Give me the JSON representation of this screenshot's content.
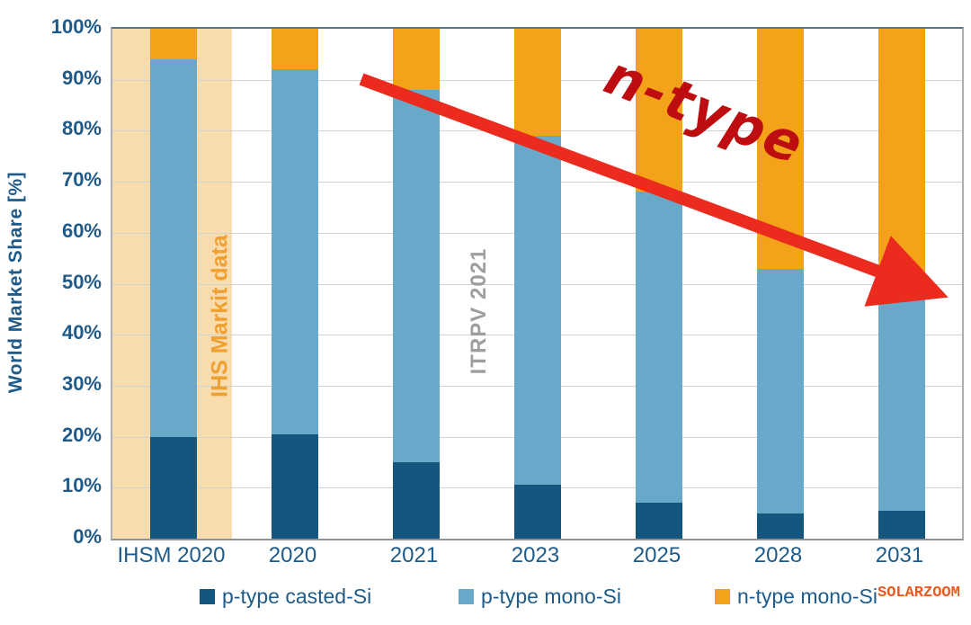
{
  "chart_data": {
    "type": "bar",
    "stacked": true,
    "orientation": "vertical",
    "title": "",
    "ylabel": "World Market Share [%]",
    "ylim": [
      0,
      100
    ],
    "ytick_step": 10,
    "ytick_suffix": "%",
    "grid": true,
    "legend_position": "bottom",
    "categories": [
      "IHSM 2020",
      "2020",
      "2021",
      "2023",
      "2025",
      "2028",
      "2031"
    ],
    "series": [
      {
        "name": "p-type casted-Si",
        "color": "#15567e",
        "values": [
          20,
          20.5,
          15,
          10.5,
          7,
          5,
          5.5
        ]
      },
      {
        "name": "p-type mono-Si",
        "color": "#68a8c8",
        "values": [
          74,
          71.5,
          73,
          68.5,
          61,
          48,
          41.5
        ]
      },
      {
        "name": "n-type mono-Si",
        "color": "#f5a21b",
        "values": [
          6,
          8,
          12,
          21,
          32,
          47,
          53
        ]
      }
    ],
    "annotations": {
      "highlight_band": {
        "text": "IHS Markit data",
        "category": "IHSM 2020",
        "band_color": "#f8dcad",
        "text_color": "#f0a030"
      },
      "source_label": {
        "text": "ITRPV 2021",
        "text_color": "#9e9e9e"
      },
      "trend_label": {
        "text": "n-type",
        "text_color": "#bd0d10"
      },
      "trend_arrow": {
        "color": "#ea2b1d",
        "from_percent_y": 90,
        "to_percent_y": 48,
        "direction": "down-right"
      }
    },
    "watermark": {
      "text": "SOLARZOOM",
      "color": "#e85a1e"
    }
  }
}
